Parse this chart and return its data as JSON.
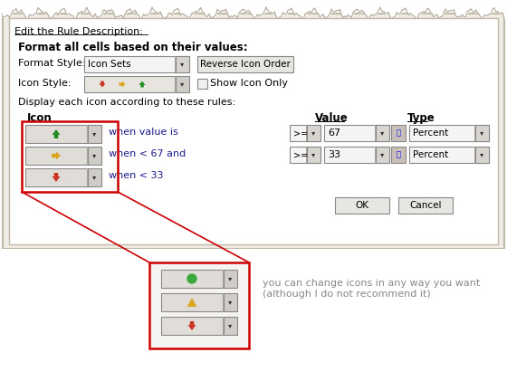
{
  "title_text": "Edit the Rule Description:",
  "bold_text": "Format all cells based on their values:",
  "format_style_label": "Format Style:",
  "format_style_value": "Icon Sets",
  "reverse_btn": "Reverse Icon Order",
  "icon_style_label": "Icon Style:",
  "show_icon_only": "Show Icon Only",
  "display_text": "Display each icon according to these rules:",
  "col_icon": "Icon",
  "col_value": "Value",
  "col_type": "Type",
  "row1_condition": "when value is",
  "row2_condition": "when < 67 and",
  "row3_condition": "when < 33",
  "row1_op": ">=",
  "row2_op": ">=",
  "row1_value": "67",
  "row2_value": "33",
  "row1_type": "Percent",
  "row2_type": "Percent",
  "ok_btn": "OK",
  "cancel_btn": "Cancel",
  "annotation_text": "you can change icons in any way you want\n(although I do not recommend it)",
  "red_box_color": "#cc0000",
  "arrow_green": "#228B22",
  "arrow_yellow": "#DAA520",
  "arrow_red": "#cc3322",
  "green_circle_color": "#3aaa3a",
  "yellow_triangle_color": "#DAA520",
  "line_color": "#cc0000",
  "dialog_outer_bg": "#f0ece4",
  "dialog_inner_bg": "#ffffff",
  "dialog_border": "#b0a898",
  "torn_bg": "#f2ede3",
  "btn_face": "#e0ddd8",
  "dd_face": "#f5f4f2",
  "text_color": "#1a1a8c",
  "label_color": "#000000",
  "annot_color": "#888888"
}
